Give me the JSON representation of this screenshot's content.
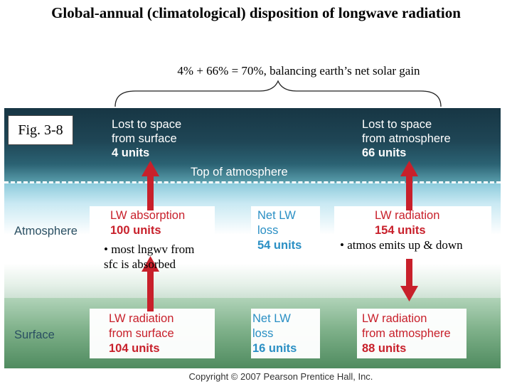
{
  "title": "Global-annual (climatological) disposition of longwave radiation",
  "subtitle": "4% + 66% = 70%, balancing earth’s net solar gain",
  "fig_label": "Fig. 3-8",
  "lost_surface": {
    "line1": "Lost to space",
    "line2": "from surface",
    "value": "4 units"
  },
  "lost_atmos": {
    "line1": "Lost to space",
    "line2": "from atmosphere",
    "value": "66 units"
  },
  "top_of_atmosphere": "Top of atmosphere",
  "zone_atmosphere": "Atmosphere",
  "zone_surface": "Surface",
  "atmos_boxes": {
    "absorption": {
      "line1": "LW absorption",
      "value": "100 units"
    },
    "net_loss": {
      "line1": "Net LW",
      "line2": "loss",
      "value": "54 units"
    },
    "radiation": {
      "line1": "LW radiation",
      "value": "154 units"
    }
  },
  "surface_boxes": {
    "radiation": {
      "line1": "LW radiation",
      "line2": "from surface",
      "value": "104 units"
    },
    "net_loss": {
      "line1": "Net LW",
      "line2": "loss",
      "value": "16 units"
    },
    "from_atmos": {
      "line1": "LW radiation",
      "line2": "from atmosphere",
      "value": "88 units"
    }
  },
  "notes": {
    "surface_absorbed": {
      "line1": "• most lngwv from",
      "line2": "sfc is absorbed"
    },
    "atmos_emits": "• atmos emits up & down"
  },
  "copyright": "Copyright © 2007 Pearson Prentice Hall, Inc.",
  "colors": {
    "space": "#1f4656",
    "arrow": "#c8202b",
    "value_red": "#c8202b",
    "value_blue": "#2a8fc4",
    "surface": "#4f8b5f"
  }
}
